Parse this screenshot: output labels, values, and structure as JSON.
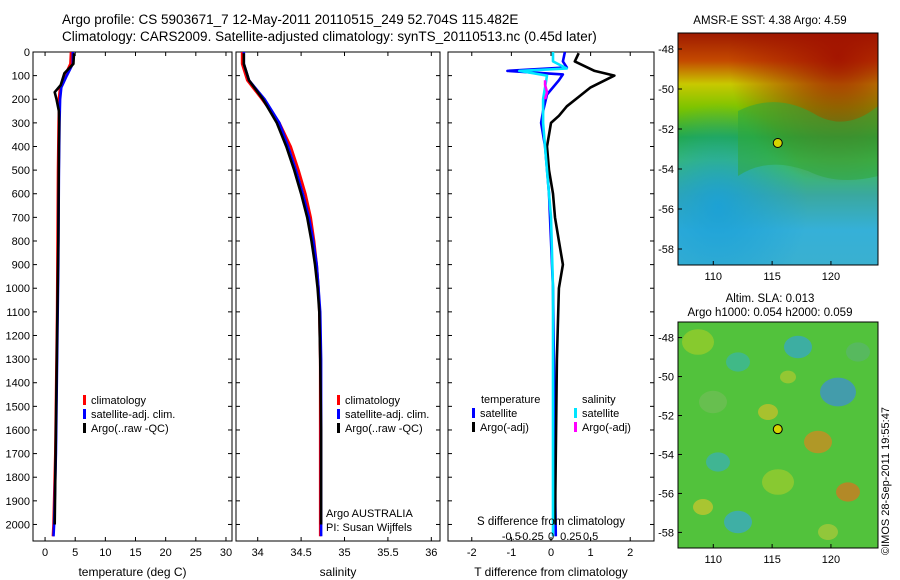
{
  "header": {
    "line1": "Argo profile: CS 5903671_7 12-May-2011 20110515_249 52.704S 115.482E",
    "line2": "Climatology: CARS2009. Satellite-adjusted climatology: synTS_20110513.nc (0.45d later)"
  },
  "colors": {
    "climatology": "#ff0000",
    "satellite": "#0000ff",
    "argo": "#000000",
    "sal_satellite": "#00e5ff",
    "sal_argo": "#ff00ff",
    "map_marker": "#d4d400"
  },
  "chart_data": [
    {
      "type": "line",
      "id": "temperature",
      "xlabel": "temperature (deg C)",
      "ylabel": "",
      "xlim": [
        -2,
        31
      ],
      "ylim": [
        2070,
        0
      ],
      "xticks": [
        0,
        5,
        10,
        15,
        20,
        25,
        30
      ],
      "yticks": [
        0,
        100,
        200,
        300,
        400,
        500,
        600,
        700,
        800,
        900,
        1000,
        1100,
        1200,
        1300,
        1400,
        1500,
        1600,
        1700,
        1800,
        1900,
        2000
      ],
      "legend": [
        "climatology",
        "satellite-adj. clim.",
        "Argo(..raw -QC)"
      ],
      "series": [
        {
          "name": "climatology",
          "color": "#ff0000",
          "x": [
            4.3,
            4.2,
            3.3,
            2.5,
            2.3,
            2.3,
            2.25,
            2.2,
            2.15,
            2.1,
            2.05,
            2.0,
            1.9,
            1.8,
            1.7,
            1.6,
            1.5,
            1.4,
            1.3
          ],
          "y": [
            0,
            50,
            100,
            150,
            200,
            250,
            300,
            400,
            500,
            700,
            900,
            1100,
            1300,
            1500,
            1700,
            1800,
            1900,
            2000,
            2050
          ]
        },
        {
          "name": "satellite-adj. clim.",
          "color": "#0000ff",
          "x": [
            4.6,
            4.6,
            3.6,
            2.7,
            2.5,
            2.45,
            2.4,
            2.35,
            2.3,
            2.25,
            2.2,
            2.1,
            2.0,
            1.9,
            1.8,
            1.7,
            1.6,
            1.5,
            1.4
          ],
          "y": [
            0,
            50,
            100,
            150,
            200,
            250,
            300,
            400,
            500,
            700,
            900,
            1100,
            1300,
            1500,
            1700,
            1800,
            1900,
            2000,
            2050
          ]
        },
        {
          "name": "Argo(..raw -QC)",
          "color": "#000000",
          "x": [
            4.8,
            4.7,
            3.2,
            2.6,
            1.6,
            1.9,
            2.3,
            2.35,
            2.3,
            2.25,
            2.2,
            2.1,
            2.0,
            1.9,
            1.8,
            1.7,
            1.6
          ],
          "y": [
            5,
            50,
            90,
            140,
            170,
            200,
            250,
            300,
            400,
            600,
            800,
            1000,
            1200,
            1400,
            1600,
            1800,
            2000
          ]
        }
      ]
    },
    {
      "type": "line",
      "id": "salinity",
      "xlabel": "salinity",
      "ylabel": "",
      "xlim": [
        33.75,
        36.1
      ],
      "ylim": [
        2070,
        0
      ],
      "xticks": [
        34,
        34.5,
        35,
        35.5,
        36
      ],
      "xticklabels": [
        "34",
        "34.5",
        "35",
        "35.5",
        "36"
      ],
      "legend": [
        "climatology",
        "satellite-adj. clim.",
        "Argo(..raw -QC)"
      ],
      "annotations": [
        "Argo AUSTRALIA",
        "PI: Susan Wijffels"
      ],
      "series": [
        {
          "name": "climatology",
          "color": "#ff0000",
          "x": [
            33.82,
            33.82,
            33.88,
            34.05,
            34.25,
            34.38,
            34.47,
            34.55,
            34.61,
            34.65,
            34.68,
            34.7,
            34.71,
            34.72,
            34.72,
            34.72,
            34.72
          ],
          "y": [
            0,
            50,
            120,
            200,
            300,
            400,
            500,
            600,
            700,
            800,
            900,
            1000,
            1100,
            1300,
            1500,
            1800,
            2050
          ]
        },
        {
          "name": "satellite-adj. clim.",
          "color": "#0000ff",
          "x": [
            33.84,
            33.84,
            33.9,
            34.08,
            34.25,
            34.35,
            34.44,
            34.52,
            34.59,
            34.64,
            34.68,
            34.7,
            34.72,
            34.73,
            34.73,
            34.73,
            34.73
          ],
          "y": [
            0,
            50,
            120,
            200,
            300,
            400,
            500,
            600,
            700,
            800,
            900,
            1000,
            1100,
            1300,
            1500,
            1800,
            2050
          ]
        },
        {
          "name": "Argo(..raw -QC)",
          "color": "#000000",
          "x": [
            33.84,
            33.84,
            33.9,
            34.06,
            34.22,
            34.33,
            34.42,
            34.5,
            34.57,
            34.62,
            34.66,
            34.69,
            34.71,
            34.72,
            34.73,
            34.73
          ],
          "y": [
            5,
            50,
            120,
            200,
            300,
            400,
            500,
            600,
            700,
            800,
            900,
            1000,
            1100,
            1300,
            1600,
            2000
          ]
        }
      ]
    },
    {
      "type": "line",
      "id": "difference",
      "xlabel": "T difference from climatology",
      "x2label": "S difference from climatology",
      "xlim": [
        -2.6,
        2.6
      ],
      "ylim": [
        2070,
        0
      ],
      "xticks": [
        -2,
        -1,
        0,
        1,
        2
      ],
      "xticklabels": [
        "-2",
        "-1",
        "0",
        "1",
        "2"
      ],
      "x2ticks": [
        -1,
        -0.5,
        0,
        0.5,
        1
      ],
      "x2ticklabels": [
        "-0.5",
        "-0.25",
        "0",
        "0.25",
        "0.5"
      ],
      "legend_headers": [
        "temperature",
        "salinity"
      ],
      "legend": [
        "satellite",
        "Argo(-adj)",
        "satellite",
        "Argo(-adj)"
      ],
      "series": [
        {
          "name": "satellite",
          "color": "#0000ff",
          "x": [
            0.35,
            0.3,
            0.4,
            -1.1,
            0.3,
            0.2,
            -0.1,
            -0.2,
            -0.25,
            -0.15,
            -0.05,
            0.0,
            0.05,
            0.08,
            0.1,
            0.12
          ],
          "y": [
            0,
            40,
            65,
            80,
            95,
            120,
            180,
            250,
            300,
            400,
            600,
            800,
            1000,
            1400,
            1800,
            2050
          ]
        },
        {
          "name": "Argo(-adj)",
          "color": "#000000",
          "x": [
            0.7,
            0.6,
            1.1,
            1.6,
            1.0,
            0.7,
            0.4,
            0.2,
            0.0,
            -0.1,
            -0.05,
            0.05,
            0.1,
            0.2,
            0.3,
            0.2,
            0.15,
            0.1
          ],
          "y": [
            5,
            40,
            80,
            100,
            150,
            190,
            230,
            270,
            300,
            400,
            500,
            600,
            700,
            800,
            900,
            1000,
            1300,
            2000
          ]
        },
        {
          "name": "salinity satellite",
          "color": "#00e5ff",
          "x": [
            0.05,
            0.05,
            0.4,
            -0.8,
            -0.1,
            -0.2,
            -0.2,
            -0.1,
            0.0,
            0.05,
            0.05,
            0.05
          ],
          "y": [
            0,
            40,
            70,
            80,
            100,
            200,
            300,
            500,
            700,
            1000,
            1500,
            2050
          ]
        },
        {
          "name": "salinity Argo(-adj)",
          "color": "#ff00ff",
          "x": [
            -0.15,
            -0.15,
            -0.1,
            -0.15
          ],
          "y": [
            120,
            140,
            170,
            200
          ]
        }
      ]
    },
    {
      "type": "heatmap",
      "id": "sst-map",
      "title": "AMSR-E SST: 4.38 Argo: 4.59",
      "xlim": [
        107,
        124
      ],
      "ylim": [
        -58.8,
        -47.2
      ],
      "xticks": [
        110,
        115,
        120
      ],
      "yticks": [
        -48,
        -50,
        -52,
        -54,
        -56,
        -58
      ],
      "marker": {
        "lon": 115.48,
        "lat": -52.7
      }
    },
    {
      "type": "heatmap",
      "id": "sla-map",
      "title": "Altim. SLA: 0.013",
      "subtitle": "Argo h1000: 0.054 h2000: 0.059",
      "xlim": [
        107,
        124
      ],
      "ylim": [
        -58.8,
        -47.2
      ],
      "xticks": [
        110,
        115,
        120
      ],
      "yticks": [
        -48,
        -50,
        -52,
        -54,
        -56,
        -58
      ],
      "marker": {
        "lon": 115.48,
        "lat": -52.7
      }
    }
  ],
  "stamp": "©IMOS 28-Sep-2011 19:55:47"
}
